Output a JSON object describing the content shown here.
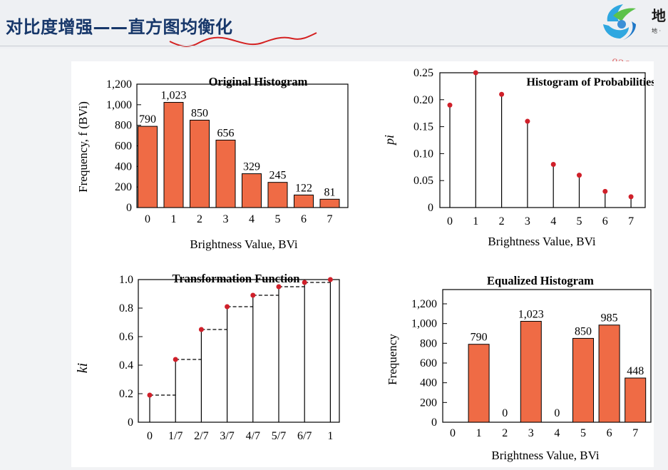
{
  "header": {
    "title": "对比度增强——直方图均衡化",
    "logo_text": "地",
    "logo_sub": "地 ·",
    "watermark": "82080"
  },
  "colors": {
    "bar": "#ef6b45",
    "dot": "#d0202a",
    "title": "#17376a",
    "underline": "#d42020"
  },
  "chart_data": [
    {
      "type": "bar",
      "title": "Original Histogram",
      "ylabel": "Frequency, f (BVi)",
      "xlabel": "Brightness Value, BVi",
      "categories": [
        "0",
        "1",
        "2",
        "3",
        "4",
        "5",
        "6",
        "7"
      ],
      "values": [
        790,
        1023,
        850,
        656,
        329,
        245,
        122,
        81
      ],
      "value_labels": [
        "790",
        "1,023",
        "850",
        "656",
        "329",
        "245",
        "122",
        "81"
      ],
      "yticks": [
        "0",
        "200",
        "400",
        "600",
        "800",
        "1,000",
        "1,200"
      ],
      "ylim": [
        0,
        1200
      ]
    },
    {
      "type": "scatter",
      "title": "Histogram of Probabilities",
      "ylabel": "pi",
      "xlabel": "Brightness Value, BVi",
      "categories": [
        "0",
        "1",
        "2",
        "3",
        "4",
        "5",
        "6",
        "7"
      ],
      "values": [
        0.19,
        0.25,
        0.21,
        0.16,
        0.08,
        0.06,
        0.03,
        0.02
      ],
      "yticks": [
        "0",
        "0.05",
        "0.10",
        "0.15",
        "0.20",
        "0.25"
      ],
      "ylim": [
        0,
        0.25
      ]
    },
    {
      "type": "line",
      "title": "Transformation Function",
      "ylabel": "ki",
      "xlabel": "",
      "categories": [
        "0",
        "1/7",
        "2/7",
        "3/7",
        "4/7",
        "5/7",
        "6/7",
        "1"
      ],
      "values": [
        0.19,
        0.44,
        0.65,
        0.81,
        0.89,
        0.95,
        0.98,
        1.0
      ],
      "yticks": [
        "0",
        "0.2",
        "0.4",
        "0.6",
        "0.8",
        "1.0"
      ],
      "ylim": [
        0,
        1.0
      ]
    },
    {
      "type": "bar",
      "title": "Equalized Histogram",
      "ylabel": "Frequency",
      "xlabel": "Brightness Value, BVi",
      "categories": [
        "0",
        "1",
        "2",
        "3",
        "4",
        "5",
        "6",
        "7"
      ],
      "values": [
        0,
        790,
        0,
        1023,
        0,
        850,
        985,
        448
      ],
      "value_labels": [
        "",
        "790",
        "0",
        "1,023",
        "0",
        "850",
        "985",
        "448"
      ],
      "yticks": [
        "0",
        "200",
        "400",
        "600",
        "800",
        "1,000",
        "1,200"
      ],
      "ylim": [
        0,
        1200
      ]
    }
  ]
}
